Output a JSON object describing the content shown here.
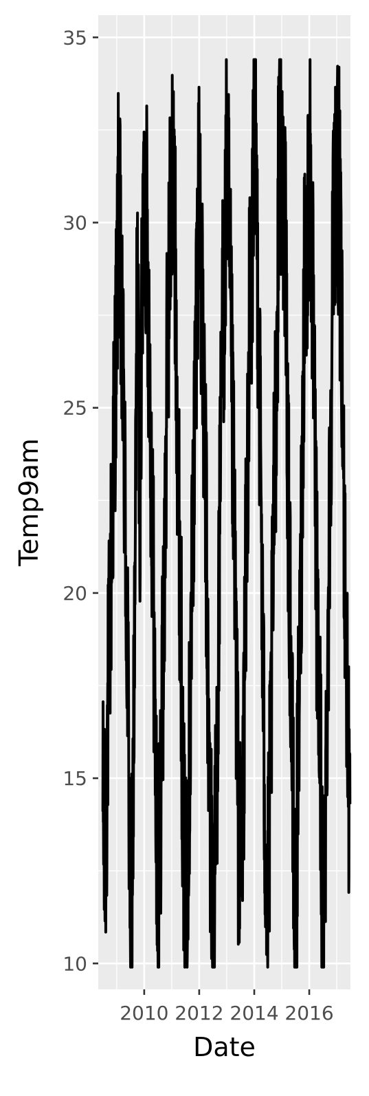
{
  "chart_data": {
    "type": "line",
    "title": "",
    "xlabel": "Date",
    "ylabel": "Temp9am",
    "x_ticks": [
      "2010",
      "2012",
      "2014",
      "2016"
    ],
    "y_ticks": [
      "10",
      "15",
      "20",
      "25",
      "30",
      "35"
    ],
    "xlim": [
      "2008-05-01",
      "2017-07-01"
    ],
    "ylim": [
      9.3,
      35.6
    ],
    "x_range": [
      "2008-07-01",
      "2017-06-25"
    ],
    "y_range": [
      9.9,
      34.4
    ],
    "grid": true,
    "legend": "none",
    "colors": {
      "panel": "#ebebeb",
      "grid": "#ffffff",
      "line": "#000000",
      "tick": "#333333"
    },
    "series": [
      {
        "points": [
          [
            "2008-07-01",
            14.1
          ],
          [
            "2008-08-01",
            12.4
          ],
          [
            "2008-09-01",
            16.3
          ],
          [
            "2008-10-01",
            19.1
          ],
          [
            "2008-11-01",
            22.0
          ],
          [
            "2008-12-01",
            24.8
          ],
          [
            "2009-01-01",
            27.5
          ],
          [
            "2009-02-01",
            31.4
          ],
          [
            "2009-03-01",
            27.0
          ],
          [
            "2009-04-01",
            25.2
          ],
          [
            "2009-05-01",
            21.0
          ],
          [
            "2009-06-01",
            17.2
          ],
          [
            "2009-07-01",
            10.7
          ],
          [
            "2009-08-01",
            13.4
          ],
          [
            "2009-09-01",
            19.7
          ],
          [
            "2009-10-01",
            29.2
          ],
          [
            "2009-11-01",
            22.5
          ],
          [
            "2009-12-01",
            27.0
          ],
          [
            "2010-01-01",
            31.0
          ],
          [
            "2010-02-01",
            30.1
          ],
          [
            "2010-03-01",
            27.4
          ],
          [
            "2010-04-01",
            24.0
          ],
          [
            "2010-05-01",
            20.4
          ],
          [
            "2010-06-01",
            15.1
          ],
          [
            "2010-07-01",
            11.2
          ],
          [
            "2010-08-01",
            14.0
          ],
          [
            "2010-09-01",
            17.3
          ],
          [
            "2010-10-01",
            21.0
          ],
          [
            "2010-11-01",
            26.2
          ],
          [
            "2010-12-01",
            29.0
          ],
          [
            "2011-01-01",
            31.6
          ],
          [
            "2011-02-01",
            30.7
          ],
          [
            "2011-03-01",
            27.3
          ],
          [
            "2011-04-01",
            22.8
          ],
          [
            "2011-05-01",
            19.5
          ],
          [
            "2011-06-01",
            14.1
          ],
          [
            "2011-07-01",
            11.6
          ],
          [
            "2011-08-01",
            13.6
          ],
          [
            "2011-09-01",
            16.4
          ],
          [
            "2011-10-01",
            21.0
          ],
          [
            "2011-11-01",
            24.5
          ],
          [
            "2011-12-01",
            28.6
          ],
          [
            "2012-01-01",
            31.5
          ],
          [
            "2012-02-01",
            28.0
          ],
          [
            "2012-03-01",
            25.1
          ],
          [
            "2012-04-01",
            21.9
          ],
          [
            "2012-05-01",
            16.4
          ],
          [
            "2012-06-01",
            13.3
          ],
          [
            "2012-07-01",
            10.6
          ],
          [
            "2012-08-01",
            13.0
          ],
          [
            "2012-09-01",
            16.8
          ],
          [
            "2012-10-01",
            21.6
          ],
          [
            "2012-11-01",
            27.3
          ],
          [
            "2012-12-01",
            28.1
          ],
          [
            "2013-01-01",
            31.9
          ],
          [
            "2013-02-01",
            29.5
          ],
          [
            "2013-03-01",
            26.4
          ],
          [
            "2013-04-01",
            22.6
          ],
          [
            "2013-05-01",
            19.0
          ],
          [
            "2013-06-01",
            14.0
          ],
          [
            "2013-07-01",
            12.4
          ],
          [
            "2013-08-01",
            13.7
          ],
          [
            "2013-09-01",
            18.8
          ],
          [
            "2013-10-01",
            23.1
          ],
          [
            "2013-11-01",
            27.8
          ],
          [
            "2013-12-01",
            28.2
          ],
          [
            "2014-01-01",
            34.4
          ],
          [
            "2014-02-01",
            30.5
          ],
          [
            "2014-03-01",
            27.0
          ],
          [
            "2014-04-01",
            22.7
          ],
          [
            "2014-05-01",
            17.0
          ],
          [
            "2014-06-01",
            13.1
          ],
          [
            "2014-07-01",
            11.6
          ],
          [
            "2014-08-01",
            14.9
          ],
          [
            "2014-09-01",
            19.3
          ],
          [
            "2014-10-01",
            24.0
          ],
          [
            "2014-11-01",
            26.7
          ],
          [
            "2014-12-01",
            33.9
          ],
          [
            "2015-01-01",
            31.0
          ],
          [
            "2015-02-01",
            30.9
          ],
          [
            "2015-03-01",
            27.6
          ],
          [
            "2015-04-01",
            21.9
          ],
          [
            "2015-05-01",
            18.6
          ],
          [
            "2015-06-01",
            13.7
          ],
          [
            "2015-07-01",
            10.1
          ],
          [
            "2015-08-01",
            14.8
          ],
          [
            "2015-09-01",
            18.5
          ],
          [
            "2015-10-01",
            23.6
          ],
          [
            "2015-11-01",
            29.5
          ],
          [
            "2015-12-01",
            28.7
          ],
          [
            "2016-01-01",
            32.1
          ],
          [
            "2016-02-01",
            29.9
          ],
          [
            "2016-03-01",
            26.0
          ],
          [
            "2016-04-01",
            21.0
          ],
          [
            "2016-05-01",
            17.4
          ],
          [
            "2016-06-01",
            15.2
          ],
          [
            "2016-07-01",
            9.9
          ],
          [
            "2016-08-01",
            14.0
          ],
          [
            "2016-09-01",
            18.2
          ],
          [
            "2016-10-01",
            22.9
          ],
          [
            "2016-11-01",
            27.9
          ],
          [
            "2016-12-01",
            31.1
          ],
          [
            "2017-01-01",
            31.3
          ],
          [
            "2017-02-01",
            30.7
          ],
          [
            "2017-03-01",
            27.2
          ],
          [
            "2017-04-01",
            23.1
          ],
          [
            "2017-05-01",
            19.3
          ],
          [
            "2017-06-01",
            15.3
          ],
          [
            "2017-06-25",
            14.3
          ]
        ]
      }
    ]
  }
}
